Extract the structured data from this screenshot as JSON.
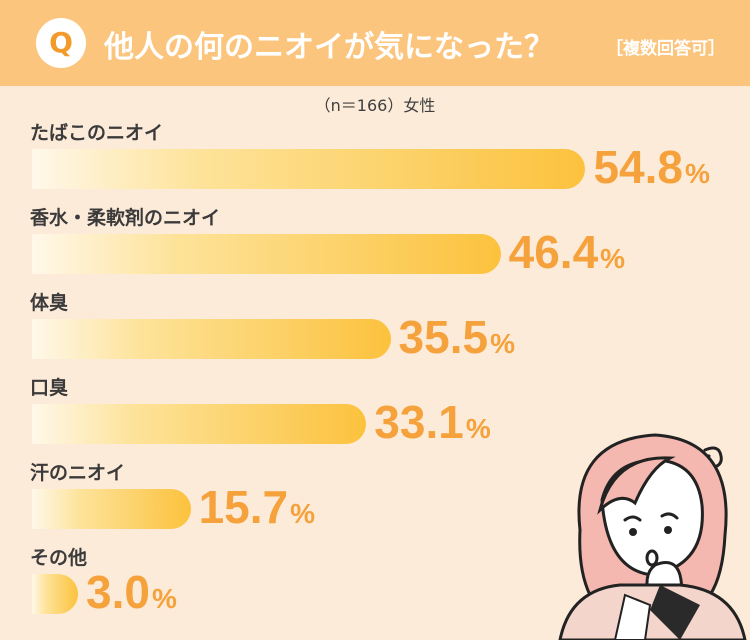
{
  "header": {
    "badge": "Q",
    "title": "他人の何のニオイが気になった？",
    "note": "［複数回答可］"
  },
  "sample_note": "（n＝166）女性",
  "colors": {
    "header_bg": "#fbc57e",
    "page_bg": "#fdebd9",
    "bar": "#fcc23d",
    "value_text": "#f5a23c"
  },
  "chart_data": {
    "type": "bar",
    "orientation": "horizontal",
    "unit": "%",
    "categories": [
      "たばこのニオイ",
      "香水・柔軟剤のニオイ",
      "体臭",
      "口臭",
      "汗のニオイ",
      "その他"
    ],
    "values": [
      54.8,
      46.4,
      35.5,
      33.1,
      15.7,
      3.0
    ],
    "value_labels": [
      "54.8",
      "46.4",
      "35.5",
      "33.1",
      "15.7",
      "3.0"
    ]
  },
  "illustration": {
    "icon": "thinking-woman-icon"
  }
}
